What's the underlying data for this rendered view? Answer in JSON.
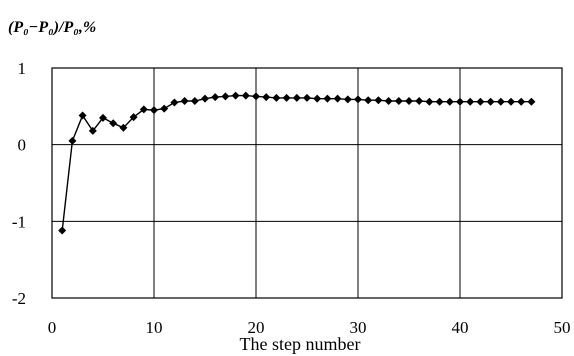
{
  "chart_data": {
    "type": "line",
    "ylabel": "(P₀−P₀)/P₀,%",
    "xlabel": "The step number",
    "xlim": [
      0,
      50
    ],
    "ylim": [
      -2,
      1
    ],
    "x_ticks": [
      "0",
      "10",
      "20",
      "30",
      "40",
      "50"
    ],
    "y_ticks": [
      "1",
      "0",
      "-1",
      "-2"
    ],
    "grid": true,
    "marker": "diamond",
    "series": [
      {
        "x": [
          1,
          2,
          3,
          4,
          5,
          6,
          7,
          8,
          9,
          10,
          11,
          12,
          13,
          14,
          15,
          16,
          17,
          18,
          19,
          20,
          21,
          22,
          23,
          24,
          25,
          26,
          27,
          28,
          29,
          30,
          31,
          32,
          33,
          34,
          35,
          36,
          37,
          38,
          39,
          40,
          41,
          42,
          43,
          44,
          45,
          46,
          47
        ],
        "values": [
          -1.12,
          0.05,
          0.38,
          0.18,
          0.35,
          0.28,
          0.22,
          0.36,
          0.46,
          0.45,
          0.47,
          0.55,
          0.57,
          0.57,
          0.6,
          0.62,
          0.63,
          0.64,
          0.64,
          0.63,
          0.62,
          0.61,
          0.61,
          0.61,
          0.61,
          0.6,
          0.6,
          0.6,
          0.59,
          0.59,
          0.58,
          0.58,
          0.57,
          0.57,
          0.57,
          0.57,
          0.56,
          0.56,
          0.56,
          0.56,
          0.56,
          0.56,
          0.56,
          0.56,
          0.56,
          0.56,
          0.56
        ]
      }
    ],
    "color": "#000000"
  }
}
